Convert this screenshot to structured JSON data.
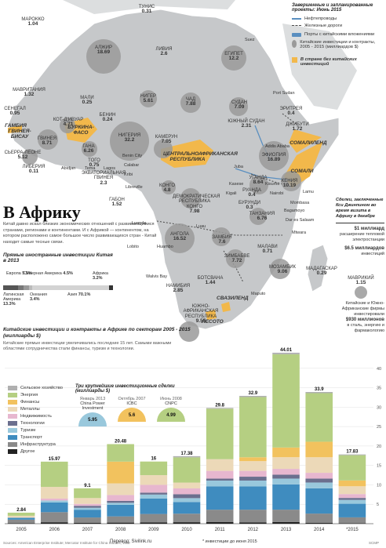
{
  "legend_top": {
    "heading": "Завершенные и запланированные проекты: Июнь 2015",
    "items": [
      {
        "label": "Нефтепроводы",
        "color": "#5a8fc0"
      },
      {
        "label": "Железные дороги",
        "color": "#4a4a4a"
      },
      {
        "label": "Порты с китайскими вложениями",
        "color": "#5a8fc0"
      },
      {
        "label": "Китайские инвестиции и контракты, 2005 - 2015 (миллиардов $)",
        "color": "#9a9a9a"
      },
      {
        "label": "В стране без китайских инвестиций",
        "color": "#f2b84b"
      }
    ]
  },
  "countries": [
    {
      "name": "ТУНИС",
      "value": "0.31"
    },
    {
      "name": "МАРОККО",
      "value": "1.04"
    },
    {
      "name": "АЛЖИР",
      "value": "18.69"
    },
    {
      "name": "ЛИВИЯ",
      "value": "2.6"
    },
    {
      "name": "ЕГИПЕТ",
      "value": "12.2"
    },
    {
      "name": "МАВРИТАНИЯ",
      "value": "1.32"
    },
    {
      "name": "МАЛИ",
      "value": "0.25"
    },
    {
      "name": "НИГЕР",
      "value": "5.61"
    },
    {
      "name": "ЧАД",
      "value": "7.88"
    },
    {
      "name": "СУДАН",
      "value": "7.09"
    },
    {
      "name": "ЭРИТРЕЯ",
      "value": "0.4"
    },
    {
      "name": "СЕНЕГАЛ",
      "value": "0.95"
    },
    {
      "name": "ГАМБИЯ",
      "value": ""
    },
    {
      "name": "ГВИНЕЯ-БИСАУ",
      "value": ""
    },
    {
      "name": "КОТ-Д'ИВУАР",
      "value": "4.71"
    },
    {
      "name": "БУРКИНА-ФАСО",
      "value": ""
    },
    {
      "name": "БЕНИН",
      "value": "0.24"
    },
    {
      "name": "ДЖИБУТИ",
      "value": "1.72"
    },
    {
      "name": "ГВИНЕЯ",
      "value": "8.71"
    },
    {
      "name": "ГАНА",
      "value": "6.26"
    },
    {
      "name": "НИГЕРИЯ",
      "value": "32.2"
    },
    {
      "name": "КАМЕРУН",
      "value": "7.05"
    },
    {
      "name": "ЮЖНЫЙ СУДАН",
      "value": "2.31"
    },
    {
      "name": "ЭФИОПИЯ",
      "value": "16.89"
    },
    {
      "name": "СЬЕРРА-ЛЕОНЕ",
      "value": "5.12"
    },
    {
      "name": "ЛИБЕРИЯ",
      "value": "0.11"
    },
    {
      "name": "СОМАЛИЛЕНД",
      "value": ""
    },
    {
      "name": "ЦЕНТРАЛЬНОАФРИКАНСКАЯ РЕСПУБЛИКА",
      "value": ""
    },
    {
      "name": "СОМАЛИ",
      "value": ""
    },
    {
      "name": "ТОГО",
      "value": "0.75"
    },
    {
      "name": "ЭКВАТОРИАЛЬНАЯ ГВИНЕЯ",
      "value": "2.3"
    },
    {
      "name": "КОНГО",
      "value": "4.8"
    },
    {
      "name": "УГАНДА",
      "value": "8.64"
    },
    {
      "name": "КЕНИЯ",
      "value": "10.19"
    },
    {
      "name": "РУАНДА",
      "value": "0.4"
    },
    {
      "name": "ГАБОН",
      "value": "1.52"
    },
    {
      "name": "ДЕМОКРАТИЧЕСКАЯ РЕСПУБЛИКА КОНГО",
      "value": "7.98"
    },
    {
      "name": "БУРУНДИ",
      "value": "0.3"
    },
    {
      "name": "ТАНЗАНИЯ",
      "value": "6.76"
    },
    {
      "name": "АНГОЛА",
      "value": "16.52"
    },
    {
      "name": "ЗАМБИЯ",
      "value": "7.6"
    },
    {
      "name": "МАЛАВИ",
      "value": "0.71"
    },
    {
      "name": "ЗИМБАБВЕ",
      "value": "7.72"
    },
    {
      "name": "МОЗАМБИК",
      "value": "9.06"
    },
    {
      "name": "МАДАГАСКАР",
      "value": "0.29"
    },
    {
      "name": "БОТСВАНА",
      "value": "1.44"
    },
    {
      "name": "НАМИБИЯ",
      "value": "2.85"
    },
    {
      "name": "СВАЗИЛЕНД",
      "value": ""
    },
    {
      "name": "ЮЖНО-АФРИКАНСКАЯ РЕСПУБЛИКА",
      "value": "9.55"
    },
    {
      "name": "ЛЕСОТО",
      "value": ""
    },
    {
      "name": "МАВРИКИЙ",
      "value": "1.15"
    }
  ],
  "cities": [
    "Suez",
    "Port Sudan",
    "Addis Ababa",
    "Abidjan",
    "Tema",
    "Lagos",
    "Benin City",
    "Calabar",
    "Kribi",
    "Libreville",
    "Luanda",
    "Lobito",
    "Juba",
    "Kigali",
    "Kasese",
    "Kisumu",
    "Nairobi",
    "Lamu",
    "Mombasa",
    "Bagamoyo",
    "Dar es Salaam",
    "Mtwara",
    "Huambo",
    "Luau",
    "Walvis Bay",
    "Maputo"
  ],
  "title": "В Африку",
  "intro": "Китай давно искал близких экономических отношений с развивающимися странами, регионами и континентами. И с Африкой — континентом, на котором расположено самое большое число развивающихся стран - Китай находит самые тесные связи.",
  "fdi": {
    "heading": "Прямые иностранные инвестиции Китая в 2013",
    "segments": [
      {
        "name": "Европа",
        "value": "5.5%"
      },
      {
        "name": "Северная Америка",
        "value": "4.5%"
      },
      {
        "name": "Латинская Америка",
        "value": "13.3%"
      },
      {
        "name": "Океания",
        "value": "3.4%"
      },
      {
        "name": "Азия",
        "value": "70.1%"
      },
      {
        "name": "Африка",
        "value": "3.2%"
      }
    ]
  },
  "side_note": {
    "heading": "Сделки, заключенные Кси Джинпином во время визита в Африку в декабре",
    "item1_value": "$1 миллиард",
    "item1_text": "расширение тепловой электростанции",
    "item2_value": "$6.5 миллиардов",
    "item2_text": "инвестиций",
    "sa_text_1": "Китайские и Южно-Африканские фирмы инвестировали",
    "sa_value": "$930 миллионов",
    "sa_text_2": "в сталь, энергию и фармакологию"
  },
  "chart_heading": "Китайские инвестиции и контракты в Африке по секторам 2005 - 2015 (миллиарды $)",
  "chart_subheading": "Китайские прямые инвестиции увеличивались последние 15 лет. Самыми важными областями сотрудничества стали финансы, туризм и технологии.",
  "deals": {
    "heading": "Три крупнейшие инвестиционные сделки (миллиарды $)",
    "items": [
      {
        "date": "Январь 2013",
        "name": "China Power Investment",
        "value": "5.95"
      },
      {
        "date": "Октябрь 2007",
        "name": "ICBC",
        "value": "5.6"
      },
      {
        "date": "Июнь 2008",
        "name": "CNPC",
        "value": "4.99"
      }
    ]
  },
  "chart_data": {
    "type": "bar",
    "stacked": true,
    "categories": [
      "2005",
      "2006",
      "2007",
      "2008",
      "2009",
      "2010",
      "2011",
      "2012",
      "2013",
      "2014",
      "*2015"
    ],
    "totals": [
      2.84,
      15.97,
      9.1,
      20.48,
      16,
      17.38,
      29.8,
      32.9,
      44.01,
      33.9,
      17.83
    ],
    "total_labels": [
      "2.84",
      "15.97",
      "9.1",
      "20.48",
      "16",
      "17.38",
      "29.8",
      "32.9",
      "44.01",
      "33.9",
      "17.83"
    ],
    "ylim": [
      0,
      45
    ],
    "yticks": [
      0,
      5,
      10,
      15,
      20,
      25,
      30,
      35,
      40
    ],
    "series": [
      {
        "name": "Сельское хозяйство",
        "color": "#b0b0b0",
        "values": [
          0,
          0,
          0,
          0,
          0,
          0.3,
          0.2,
          0.3,
          0.4,
          0.3,
          0.2
        ]
      },
      {
        "name": "Энергия",
        "color": "#b5cf82",
        "values": [
          0.8,
          6.5,
          2.5,
          4.5,
          3.5,
          6.5,
          13,
          15.5,
          24,
          12.5,
          6.5
        ]
      },
      {
        "name": "Финансы",
        "color": "#f2c25e",
        "values": [
          0,
          0,
          0,
          5.6,
          0,
          0,
          0,
          1,
          2.5,
          4,
          1.5
        ]
      },
      {
        "name": "Металлы",
        "color": "#ecd9b8",
        "values": [
          0.5,
          3,
          1.5,
          3,
          2.5,
          1.5,
          3,
          2.5,
          3,
          4,
          2
        ]
      },
      {
        "name": "Недвижимость",
        "color": "#e7b7cf",
        "values": [
          0,
          0.5,
          0.5,
          1.5,
          2,
          1.5,
          2,
          1.5,
          1.5,
          1.5,
          1
        ]
      },
      {
        "name": "Технологии",
        "color": "#6b6f8e",
        "values": [
          0,
          0,
          0.5,
          0.5,
          0.5,
          1,
          0.5,
          1,
          1,
          1,
          0.5
        ]
      },
      {
        "name": "Туризм",
        "color": "#99c8dc",
        "values": [
          0,
          0.5,
          0.5,
          0.5,
          1,
          1,
          1.5,
          1.5,
          1.5,
          1.5,
          1
        ]
      },
      {
        "name": "Транспорт",
        "color": "#3f8cbf",
        "values": [
          0.5,
          2.5,
          2,
          3,
          4,
          3,
          6,
          6,
          6.5,
          6.5,
          3.5
        ]
      },
      {
        "name": "Инфраструктура",
        "color": "#8a8a8a",
        "values": [
          0.9,
          2.6,
          1.4,
          1.6,
          2.2,
          2.2,
          3.2,
          3.3,
          3.2,
          2.4,
          1.5
        ]
      },
      {
        "name": "Другое",
        "color": "#222222",
        "values": [
          0.14,
          0.37,
          0.2,
          0.28,
          0.3,
          0.38,
          0.4,
          0.3,
          0.41,
          0.2,
          0.13
        ]
      }
    ]
  },
  "footer": {
    "sources": "Sources: American Enterprise Institute; Mercator Institute for China Studies; WSJ",
    "translation": "Перевод: Sivilink.ru",
    "asterisk": "* инвестиции до июня 2015",
    "credit": "SCMP"
  }
}
